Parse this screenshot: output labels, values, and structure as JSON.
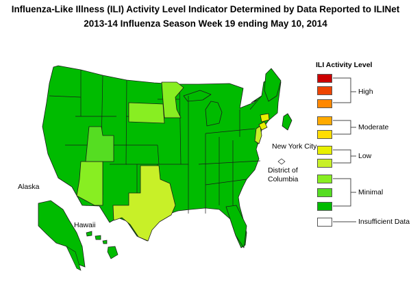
{
  "title_line1": "Influenza-Like Illness (ILI) Activity Level Indicator Determined by Data Reported to ILINet",
  "title_line2": "2013-14  Influenza Season Week  19 ending May 10, 2014",
  "map_labels": {
    "alaska": "Alaska",
    "hawaii": "Hawaii",
    "new_york_city": "New York City",
    "dc_line1": "District of",
    "dc_line2": "Columbia"
  },
  "legend": {
    "title": "ILI Activity Level",
    "swatches": [
      "#cc0000",
      "#ee4400",
      "#ff8800",
      "#ffaa00",
      "#ffdd00",
      "#e8f000",
      "#c8f028",
      "#88ee22",
      "#55dd22",
      "#00bb00",
      "#ffffff"
    ],
    "groups": [
      {
        "label": "High",
        "levels": [
          10,
          9,
          8
        ]
      },
      {
        "label": "Moderate",
        "levels": [
          7,
          6
        ]
      },
      {
        "label": "Low",
        "levels": [
          5,
          4
        ]
      },
      {
        "label": "Minimal",
        "levels": [
          3,
          2,
          1
        ]
      },
      {
        "label": "Insufficient Data",
        "levels": []
      }
    ]
  },
  "activity_colors": {
    "minimal_1": "#00bb00",
    "minimal_2": "#55dd22",
    "minimal_3": "#88ee22",
    "low_4": "#c8f028",
    "low_5": "#e8f000"
  },
  "highlighted_states": {
    "Texas": "low_4",
    "Connecticut": "low_5",
    "New Jersey": "low_4",
    "Arizona": "minimal_3",
    "Utah": "minimal_2",
    "Minnesota": "minimal_3",
    "South Dakota": "minimal_3",
    "New York City": "low_5"
  }
}
